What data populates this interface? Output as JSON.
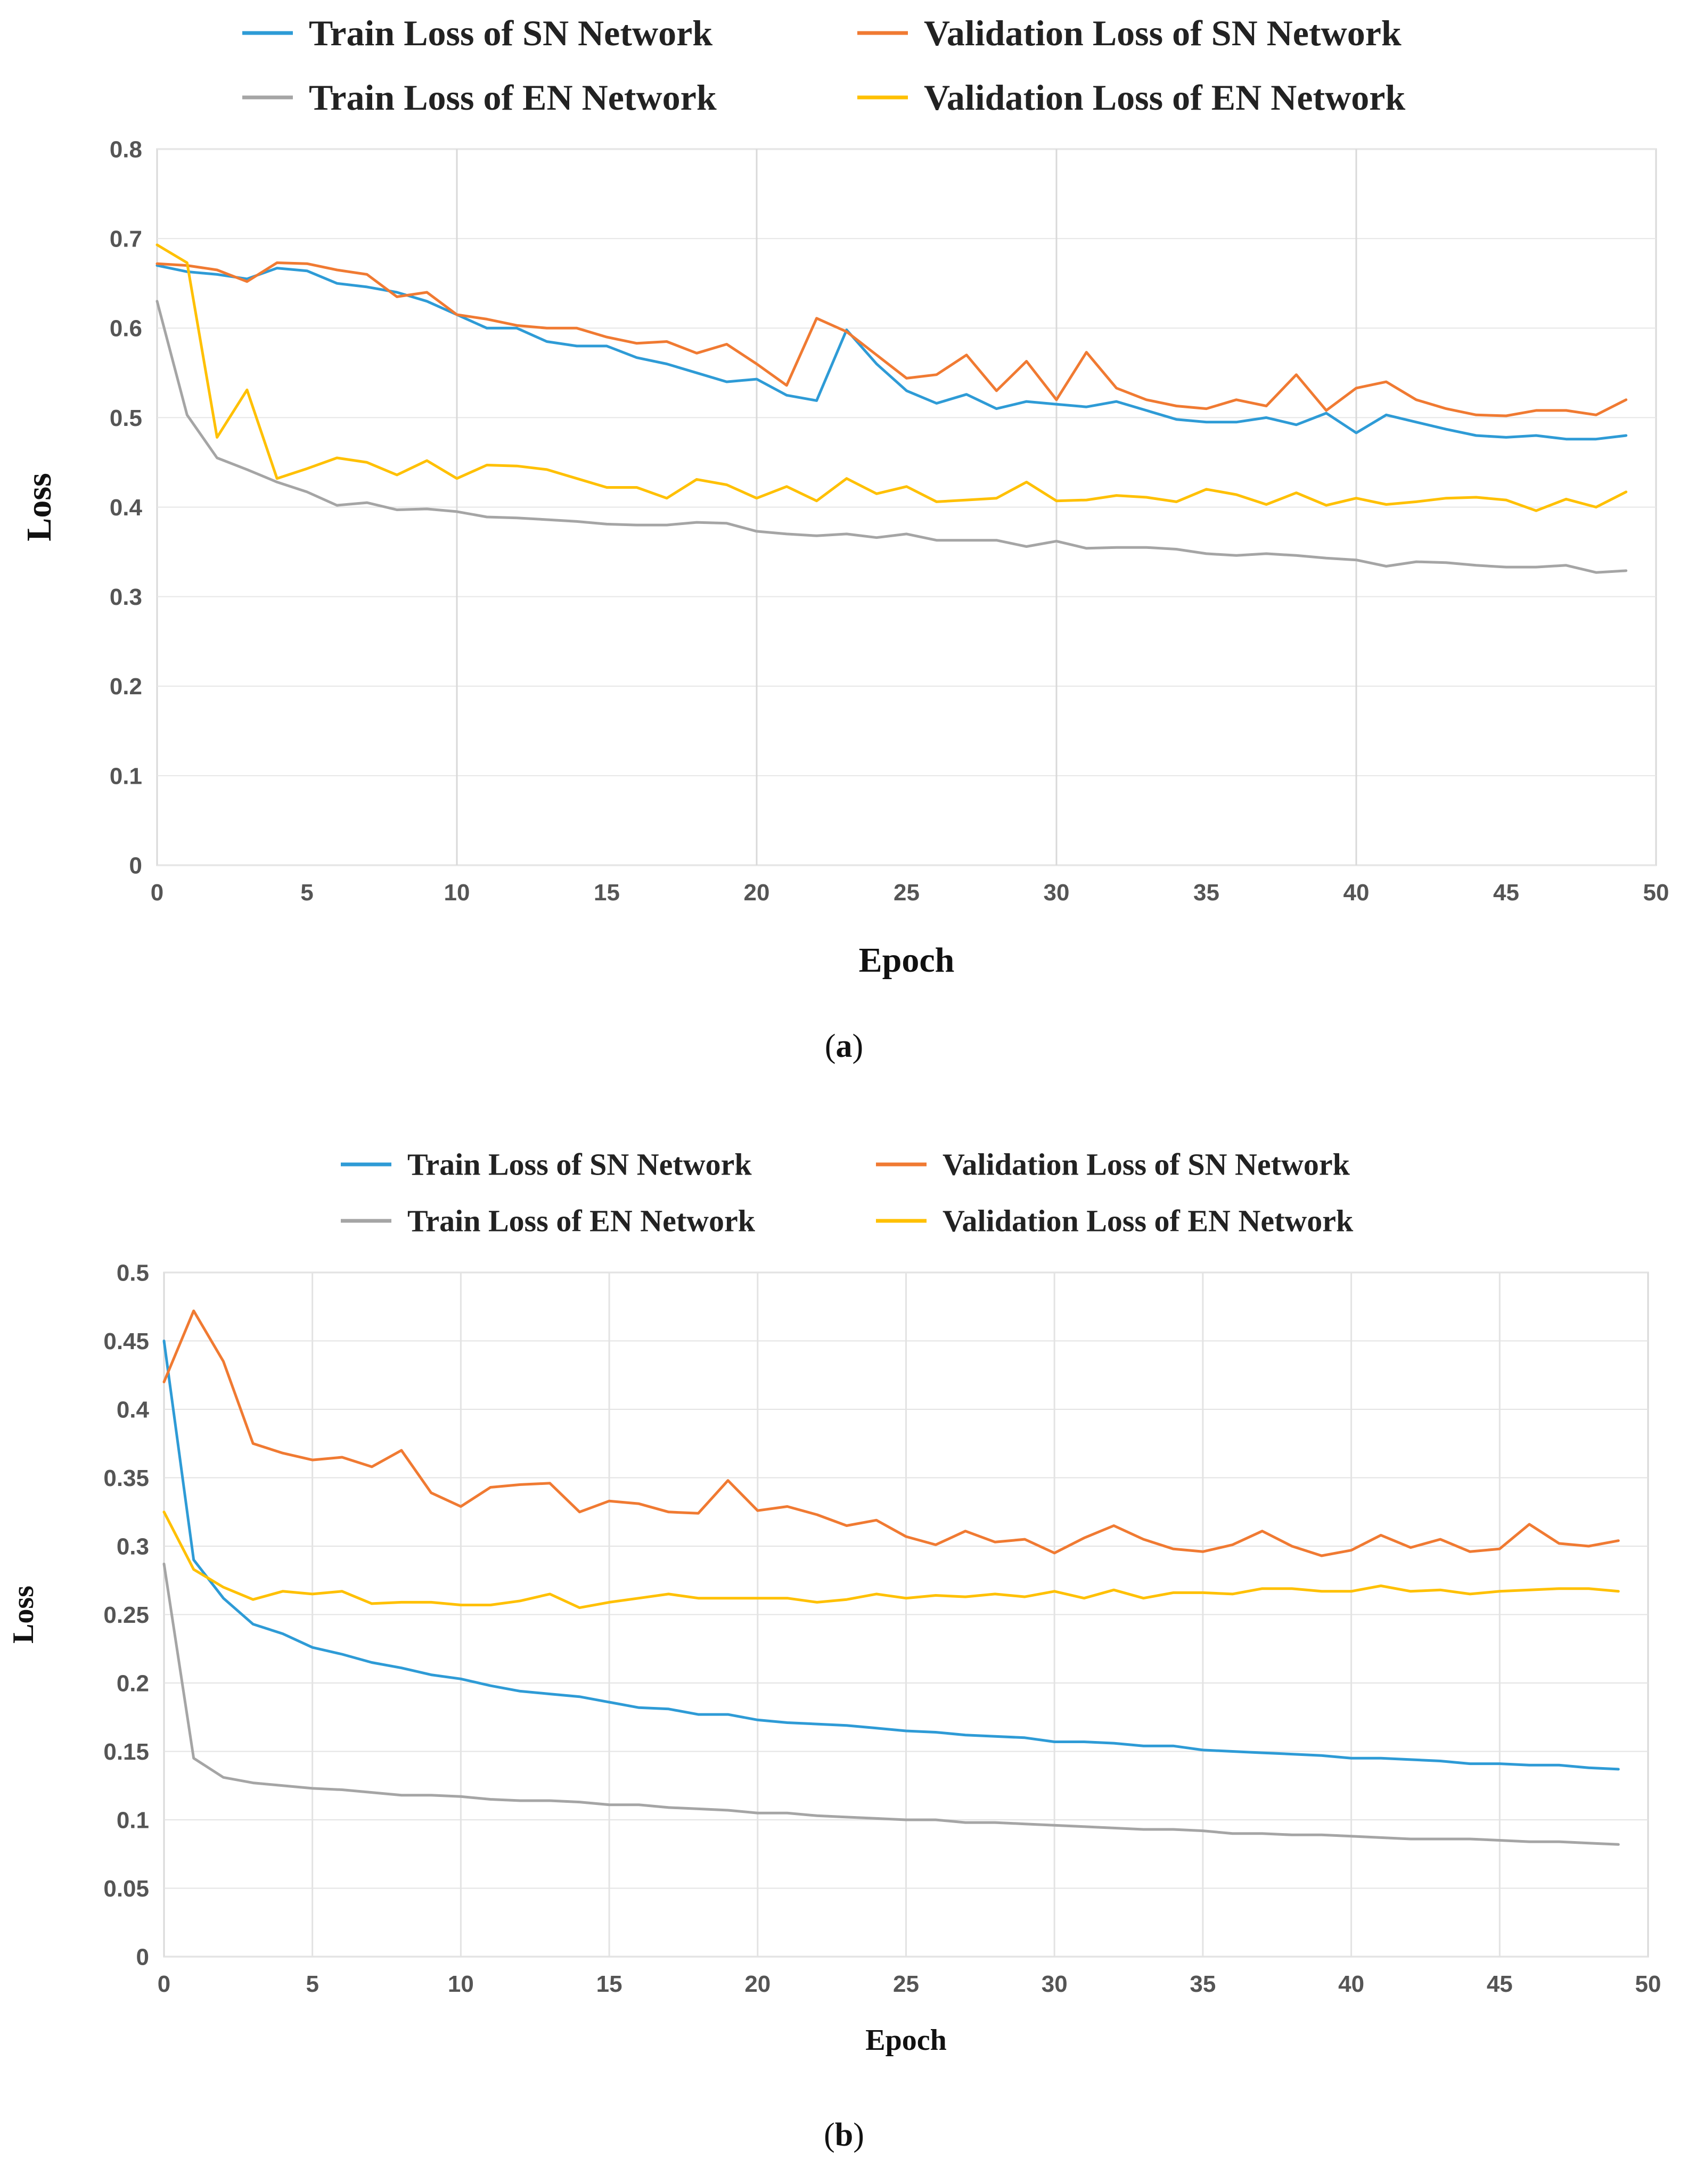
{
  "chart_data": [
    {
      "type": "line",
      "caption_letter": "a",
      "xlabel": "Epoch",
      "ylabel": "Loss",
      "xlim": [
        0,
        50
      ],
      "ylim": [
        0,
        0.8
      ],
      "xticks": [
        "0",
        "5",
        "10",
        "15",
        "20",
        "25",
        "30",
        "35",
        "40",
        "45",
        "50"
      ],
      "yticks": [
        "0",
        "0.1",
        "0.2",
        "0.3",
        "0.4",
        "0.5",
        "0.6",
        "0.7",
        "0.8"
      ],
      "grid": "vertical major gridlines at every 10 epochs, light horizontal gridlines",
      "legend_position": "top",
      "x": [
        0,
        1,
        2,
        3,
        4,
        5,
        6,
        7,
        8,
        9,
        10,
        11,
        12,
        13,
        14,
        15,
        16,
        17,
        18,
        19,
        20,
        21,
        22,
        23,
        24,
        25,
        26,
        27,
        28,
        29,
        30,
        31,
        32,
        33,
        34,
        35,
        36,
        37,
        38,
        39,
        40,
        41,
        42,
        43,
        44,
        45,
        46,
        47,
        48,
        49
      ],
      "series": [
        {
          "name": "Train Loss of SN Network",
          "color": "#2e9bd6",
          "values": [
            0.67,
            0.663,
            0.66,
            0.655,
            0.667,
            0.664,
            0.65,
            0.646,
            0.64,
            0.63,
            0.615,
            0.6,
            0.6,
            0.585,
            0.58,
            0.58,
            0.567,
            0.56,
            0.55,
            0.54,
            0.543,
            0.525,
            0.519,
            0.598,
            0.56,
            0.53,
            0.516,
            0.526,
            0.51,
            0.518,
            0.515,
            0.512,
            0.518,
            0.508,
            0.498,
            0.495,
            0.495,
            0.5,
            0.492,
            0.505,
            0.483,
            0.503,
            0.495,
            0.487,
            0.48,
            0.478,
            0.48,
            0.476,
            0.476,
            0.48
          ]
        },
        {
          "name": "Validation Loss of SN Network",
          "color": "#f07a32",
          "values": [
            0.672,
            0.67,
            0.665,
            0.652,
            0.673,
            0.672,
            0.665,
            0.66,
            0.635,
            0.64,
            0.615,
            0.61,
            0.603,
            0.6,
            0.6,
            0.59,
            0.583,
            0.585,
            0.572,
            0.582,
            0.56,
            0.536,
            0.611,
            0.596,
            0.57,
            0.544,
            0.548,
            0.57,
            0.53,
            0.563,
            0.52,
            0.573,
            0.533,
            0.52,
            0.513,
            0.51,
            0.52,
            0.513,
            0.548,
            0.508,
            0.533,
            0.54,
            0.52,
            0.51,
            0.503,
            0.502,
            0.508,
            0.508,
            0.503,
            0.52
          ]
        },
        {
          "name": "Train Loss of EN Network",
          "color": "#a5a5a5",
          "values": [
            0.63,
            0.503,
            0.455,
            0.442,
            0.428,
            0.417,
            0.402,
            0.405,
            0.397,
            0.398,
            0.395,
            0.389,
            0.388,
            0.386,
            0.384,
            0.381,
            0.38,
            0.38,
            0.383,
            0.382,
            0.373,
            0.37,
            0.368,
            0.37,
            0.366,
            0.37,
            0.363,
            0.363,
            0.363,
            0.356,
            0.362,
            0.354,
            0.355,
            0.355,
            0.353,
            0.348,
            0.346,
            0.348,
            0.346,
            0.343,
            0.341,
            0.334,
            0.339,
            0.338,
            0.335,
            0.333,
            0.333,
            0.335,
            0.327,
            0.329
          ]
        },
        {
          "name": "Validation Loss of EN Network",
          "color": "#ffc000",
          "values": [
            0.693,
            0.673,
            0.478,
            0.531,
            0.432,
            0.443,
            0.455,
            0.45,
            0.436,
            0.452,
            0.432,
            0.447,
            0.446,
            0.442,
            0.432,
            0.422,
            0.422,
            0.41,
            0.431,
            0.425,
            0.41,
            0.423,
            0.407,
            0.432,
            0.415,
            0.423,
            0.406,
            0.408,
            0.41,
            0.428,
            0.407,
            0.408,
            0.413,
            0.411,
            0.406,
            0.42,
            0.414,
            0.403,
            0.416,
            0.402,
            0.41,
            0.403,
            0.406,
            0.41,
            0.411,
            0.408,
            0.396,
            0.409,
            0.4,
            0.417
          ]
        }
      ]
    },
    {
      "type": "line",
      "caption_letter": "b",
      "xlabel": "Epoch",
      "ylabel": "Loss",
      "xlim": [
        0,
        50
      ],
      "ylim": [
        0,
        0.5
      ],
      "xticks": [
        "0",
        "5",
        "10",
        "15",
        "20",
        "25",
        "30",
        "35",
        "40",
        "45",
        "50"
      ],
      "yticks": [
        "0",
        "0.05",
        "0.1",
        "0.15",
        "0.2",
        "0.25",
        "0.3",
        "0.35",
        "0.4",
        "0.45",
        "0.5"
      ],
      "grid": "vertical gridlines every 5 epochs, horizontal gridlines every 0.05",
      "legend_position": "top",
      "x": [
        0,
        1,
        2,
        3,
        4,
        5,
        6,
        7,
        8,
        9,
        10,
        11,
        12,
        13,
        14,
        15,
        16,
        17,
        18,
        19,
        20,
        21,
        22,
        23,
        24,
        25,
        26,
        27,
        28,
        29,
        30,
        31,
        32,
        33,
        34,
        35,
        36,
        37,
        38,
        39,
        40,
        41,
        42,
        43,
        44,
        45,
        46,
        47,
        48,
        49
      ],
      "series": [
        {
          "name": "Train Loss of SN Network",
          "color": "#2e9bd6",
          "values": [
            0.45,
            0.29,
            0.262,
            0.243,
            0.236,
            0.226,
            0.221,
            0.215,
            0.211,
            0.206,
            0.203,
            0.198,
            0.194,
            0.192,
            0.19,
            0.186,
            0.182,
            0.181,
            0.177,
            0.177,
            0.173,
            0.171,
            0.17,
            0.169,
            0.167,
            0.165,
            0.164,
            0.162,
            0.161,
            0.16,
            0.157,
            0.157,
            0.156,
            0.154,
            0.154,
            0.151,
            0.15,
            0.149,
            0.148,
            0.147,
            0.145,
            0.145,
            0.144,
            0.143,
            0.141,
            0.141,
            0.14,
            0.14,
            0.138,
            0.137
          ]
        },
        {
          "name": "Validation Loss of SN Network",
          "color": "#f07a32",
          "values": [
            0.42,
            0.472,
            0.435,
            0.375,
            0.368,
            0.363,
            0.365,
            0.358,
            0.37,
            0.339,
            0.329,
            0.343,
            0.345,
            0.346,
            0.325,
            0.333,
            0.331,
            0.325,
            0.324,
            0.348,
            0.326,
            0.329,
            0.323,
            0.315,
            0.319,
            0.307,
            0.301,
            0.311,
            0.303,
            0.305,
            0.295,
            0.306,
            0.315,
            0.305,
            0.298,
            0.296,
            0.301,
            0.311,
            0.3,
            0.293,
            0.297,
            0.308,
            0.299,
            0.305,
            0.296,
            0.298,
            0.316,
            0.302,
            0.3,
            0.304
          ]
        },
        {
          "name": "Train Loss of EN Network",
          "color": "#a5a5a5",
          "values": [
            0.287,
            0.145,
            0.131,
            0.127,
            0.125,
            0.123,
            0.122,
            0.12,
            0.118,
            0.118,
            0.117,
            0.115,
            0.114,
            0.114,
            0.113,
            0.111,
            0.111,
            0.109,
            0.108,
            0.107,
            0.105,
            0.105,
            0.103,
            0.102,
            0.101,
            0.1,
            0.1,
            0.098,
            0.098,
            0.097,
            0.096,
            0.095,
            0.094,
            0.093,
            0.093,
            0.092,
            0.09,
            0.09,
            0.089,
            0.089,
            0.088,
            0.087,
            0.086,
            0.086,
            0.086,
            0.085,
            0.084,
            0.084,
            0.083,
            0.082
          ]
        },
        {
          "name": "Validation Loss of EN Network",
          "color": "#ffc000",
          "values": [
            0.325,
            0.283,
            0.27,
            0.261,
            0.267,
            0.265,
            0.267,
            0.258,
            0.259,
            0.259,
            0.257,
            0.257,
            0.26,
            0.265,
            0.255,
            0.259,
            0.262,
            0.265,
            0.262,
            0.262,
            0.262,
            0.262,
            0.259,
            0.261,
            0.265,
            0.262,
            0.264,
            0.263,
            0.265,
            0.263,
            0.267,
            0.262,
            0.268,
            0.262,
            0.266,
            0.266,
            0.265,
            0.269,
            0.269,
            0.267,
            0.267,
            0.271,
            0.267,
            0.268,
            0.265,
            0.267,
            0.268,
            0.269,
            0.269,
            0.267
          ]
        }
      ]
    }
  ]
}
